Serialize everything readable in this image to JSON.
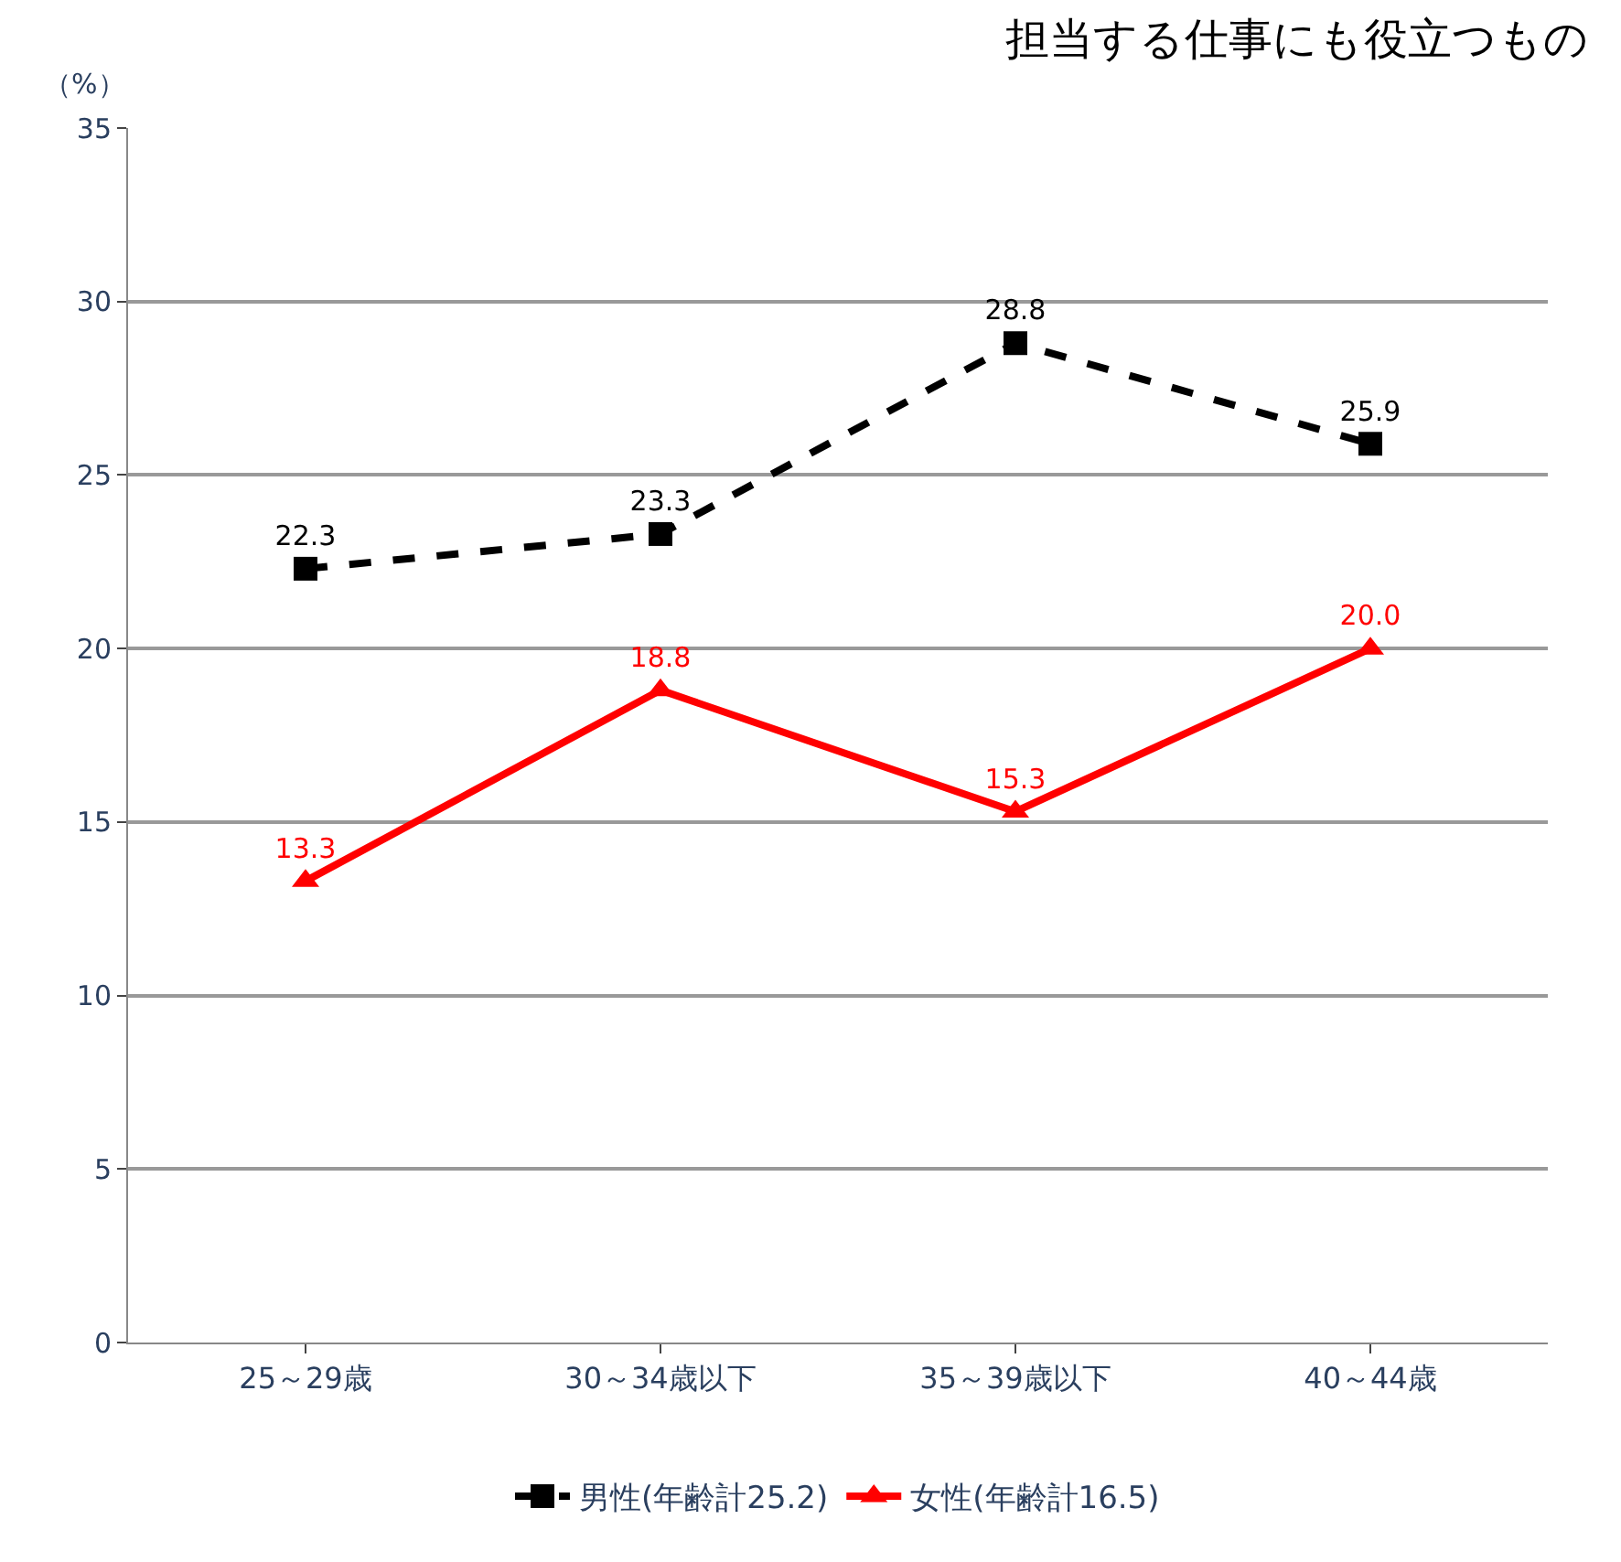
{
  "chart_data": {
    "type": "line",
    "title": "担当する仕事にも役立つもの",
    "ylabel": "（%）",
    "categories": [
      "25～29歳",
      "30～34歳以下",
      "35～39歳以下",
      "40～44歳"
    ],
    "series": [
      {
        "name": "男性(年齢計25.2)",
        "color": "#000000",
        "values": [
          22.3,
          23.3,
          28.8,
          25.9
        ],
        "value_labels": [
          "22.3",
          "23.3",
          "28.8",
          "25.9"
        ],
        "marker": "square",
        "line_style": "dashed"
      },
      {
        "name": "女性(年齢計16.5)",
        "color": "#ff0000",
        "values": [
          13.3,
          18.8,
          15.3,
          20.0
        ],
        "value_labels": [
          "13.3",
          "18.8",
          "15.3",
          "20.0"
        ],
        "marker": "triangle",
        "line_style": "solid"
      }
    ],
    "ylim": [
      0,
      35
    ],
    "yticks": [
      0,
      5,
      10,
      15,
      20,
      25,
      30,
      35
    ],
    "grid": "y",
    "legend": "bottom"
  }
}
